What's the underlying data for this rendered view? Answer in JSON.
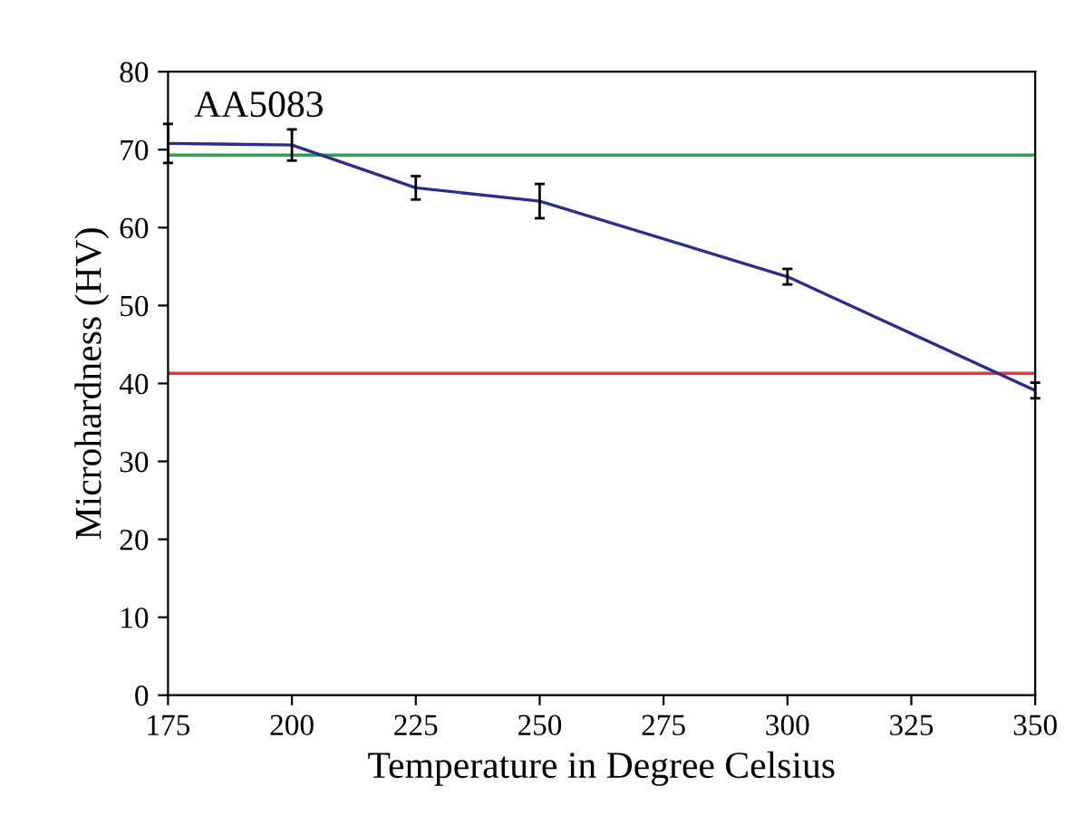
{
  "chart_data": {
    "type": "line",
    "xlabel": "Temperature in Degree Celsius",
    "ylabel": "Microhardness (HV)",
    "x": [
      175,
      200,
      225,
      250,
      300,
      350
    ],
    "series": [
      {
        "color": "#2b2f8a",
        "values": [
          70.8,
          70.6,
          65.1,
          63.4,
          53.7,
          39.1
        ],
        "errors": [
          2.5,
          2,
          1.5,
          2.2,
          1,
          1
        ]
      }
    ],
    "xlim": [
      175,
      350
    ],
    "xticks": [
      175,
      200,
      225,
      250,
      275,
      300,
      325,
      350
    ],
    "ylim": [
      0,
      80
    ],
    "yticks": [
      0,
      10,
      20,
      30,
      40,
      50,
      60,
      70,
      80
    ],
    "ref_lines": [
      {
        "axis": "y",
        "value": 69.3,
        "color": "#3a9a5c"
      },
      {
        "axis": "y",
        "value": 41.3,
        "color": "#e8383d"
      }
    ],
    "annotations": [
      "AA5083"
    ],
    "grid": false,
    "legend": false,
    "marker": "none",
    "line_style": "solid"
  }
}
